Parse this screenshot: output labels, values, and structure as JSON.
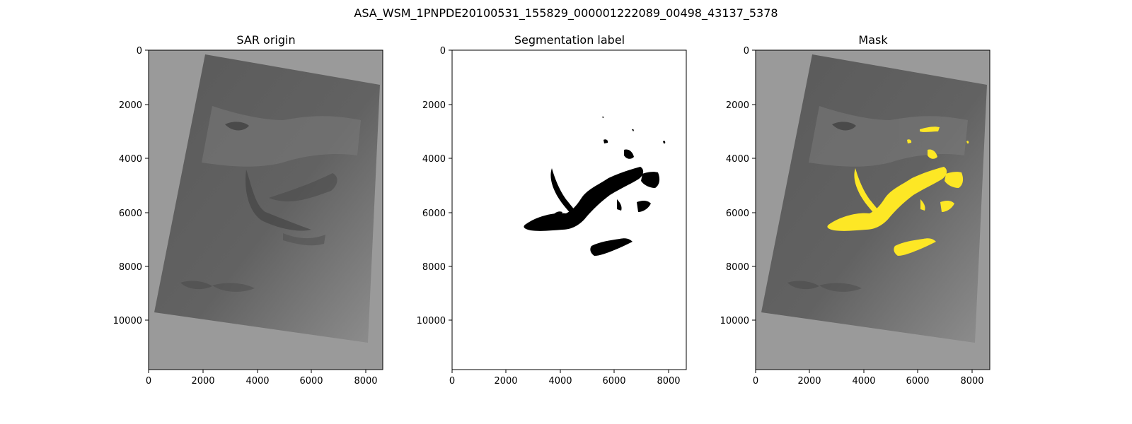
{
  "figure": {
    "title": "ASA_WSM_1PNPDE20100531_155829_000001222089_00498_43137_5378"
  },
  "panels": [
    {
      "id": "sar",
      "title": "SAR origin",
      "x_ticks": [
        "0",
        "2000",
        "4000",
        "6000",
        "8000"
      ],
      "y_ticks": [
        "0",
        "2000",
        "4000",
        "6000",
        "8000",
        "10000"
      ]
    },
    {
      "id": "label",
      "title": "Segmentation label",
      "x_ticks": [
        "0",
        "2000",
        "4000",
        "6000",
        "8000"
      ],
      "y_ticks": [
        "0",
        "2000",
        "4000",
        "6000",
        "8000",
        "10000"
      ]
    },
    {
      "id": "mask",
      "title": "Mask",
      "x_ticks": [
        "0",
        "2000",
        "4000",
        "6000",
        "8000"
      ],
      "y_ticks": [
        "0",
        "2000",
        "4000",
        "6000",
        "8000",
        "10000"
      ]
    }
  ],
  "colors": {
    "background_fill": "#9a9a9a",
    "scene_fill": "#6e6e6e",
    "segmentation": "#000000",
    "mask_overlay": "#fde725"
  }
}
